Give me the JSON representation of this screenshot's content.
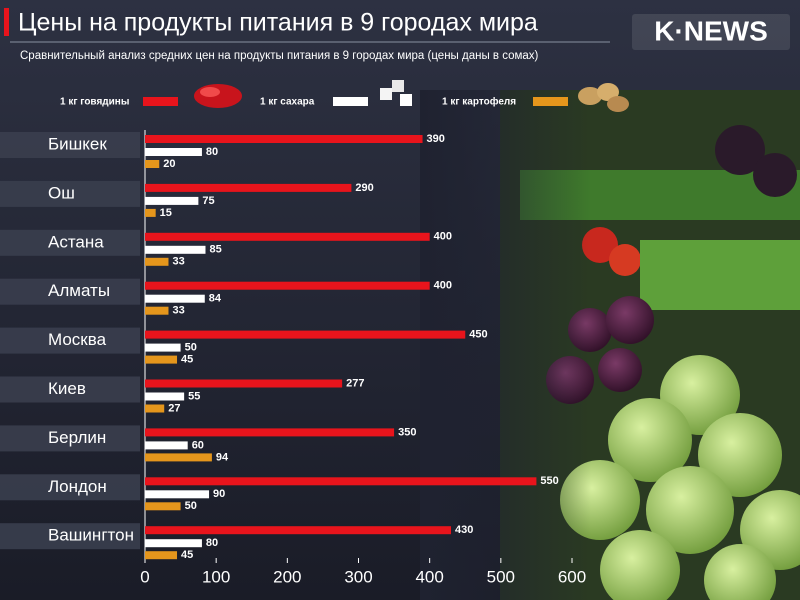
{
  "chart_data": {
    "type": "barh",
    "title": "Цены на продукты питания в 9 городах мира",
    "subtitle": "Сравнительный анализ средних цен на продукты питания в 9 городах мира (цены даны в сомах)",
    "logo": "K·NEWS",
    "categories": [
      "Бишкек",
      "Ош",
      "Астана",
      "Алматы",
      "Москва",
      "Киев",
      "Берлин",
      "Лондон",
      "Вашингтон"
    ],
    "series": [
      {
        "name": "1 кг говядины",
        "color": "#e8141c",
        "values": [
          390,
          290,
          400,
          400,
          450,
          277,
          350,
          550,
          430
        ]
      },
      {
        "name": "1 кг сахара",
        "color": "#ffffff",
        "values": [
          80,
          75,
          85,
          84,
          50,
          55,
          60,
          90,
          80
        ]
      },
      {
        "name": "1 кг картофеля",
        "color": "#e5961c",
        "values": [
          20,
          15,
          33,
          33,
          45,
          27,
          94,
          50,
          45
        ]
      }
    ],
    "xlim": [
      0,
      600
    ],
    "xticks": [
      0,
      100,
      200,
      300,
      400,
      500,
      600
    ]
  }
}
